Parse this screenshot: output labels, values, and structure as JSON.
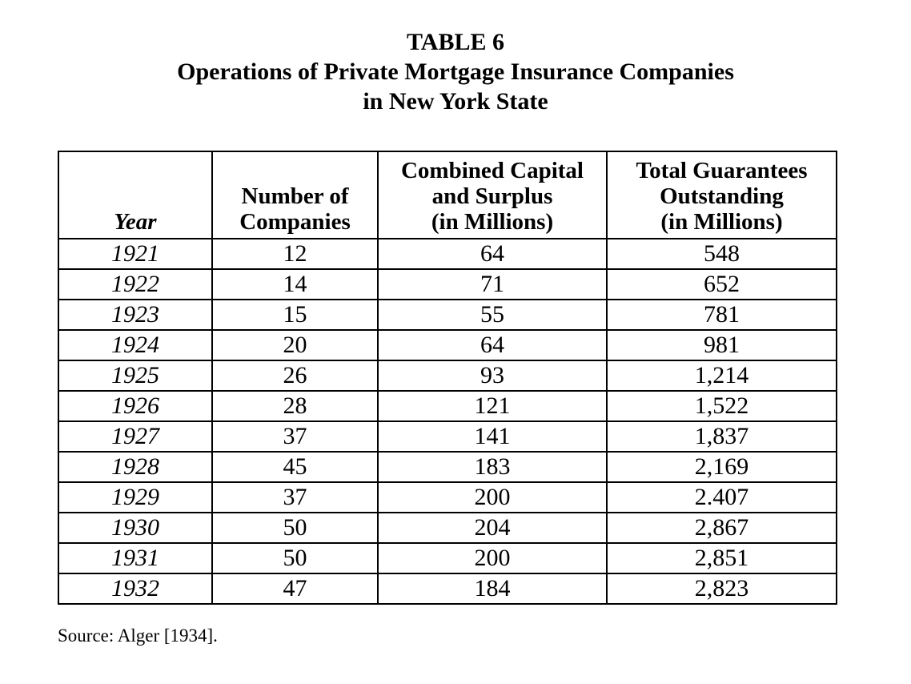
{
  "title": {
    "line1": "TABLE 6",
    "line2": "Operations of Private Mortgage Insurance Companies",
    "line3": "in New York State"
  },
  "source_note": "Source: Alger [1934].",
  "chart_data": {
    "type": "table",
    "title": "TABLE 6",
    "subtitle": "Operations of Private Mortgage Insurance Companies in New York State",
    "column_headers_multiline": [
      "Year",
      "Number of\nCompanies",
      "Combined Capital\nand Surplus\n(in Millions)",
      "Total Guarantees\nOutstanding\n(in Millions)"
    ],
    "column_headers_flat": [
      "Year",
      "Number of Companies",
      "Combined Capital and Surplus (in Millions)",
      "Total Guarantees Outstanding (in Millions)"
    ],
    "rows": [
      [
        "1921",
        "12",
        "64",
        "548"
      ],
      [
        "1922",
        "14",
        "71",
        "652"
      ],
      [
        "1923",
        "15",
        "55",
        "781"
      ],
      [
        "1924",
        "20",
        "64",
        "981"
      ],
      [
        "1925",
        "26",
        "93",
        "1,214"
      ],
      [
        "1926",
        "28",
        "121",
        "1,522"
      ],
      [
        "1927",
        "37",
        "141",
        "1,837"
      ],
      [
        "1928",
        "45",
        "183",
        "2,169"
      ],
      [
        "1929",
        "37",
        "200",
        "2.407"
      ],
      [
        "1930",
        "50",
        "204",
        "2,867"
      ],
      [
        "1931",
        "50",
        "200",
        "2,851"
      ],
      [
        "1932",
        "47",
        "184",
        "2,823"
      ]
    ],
    "notes": "Value 2.407 for 1929 appears with a period (not comma) in the source document.",
    "source": "Alger [1934]"
  }
}
